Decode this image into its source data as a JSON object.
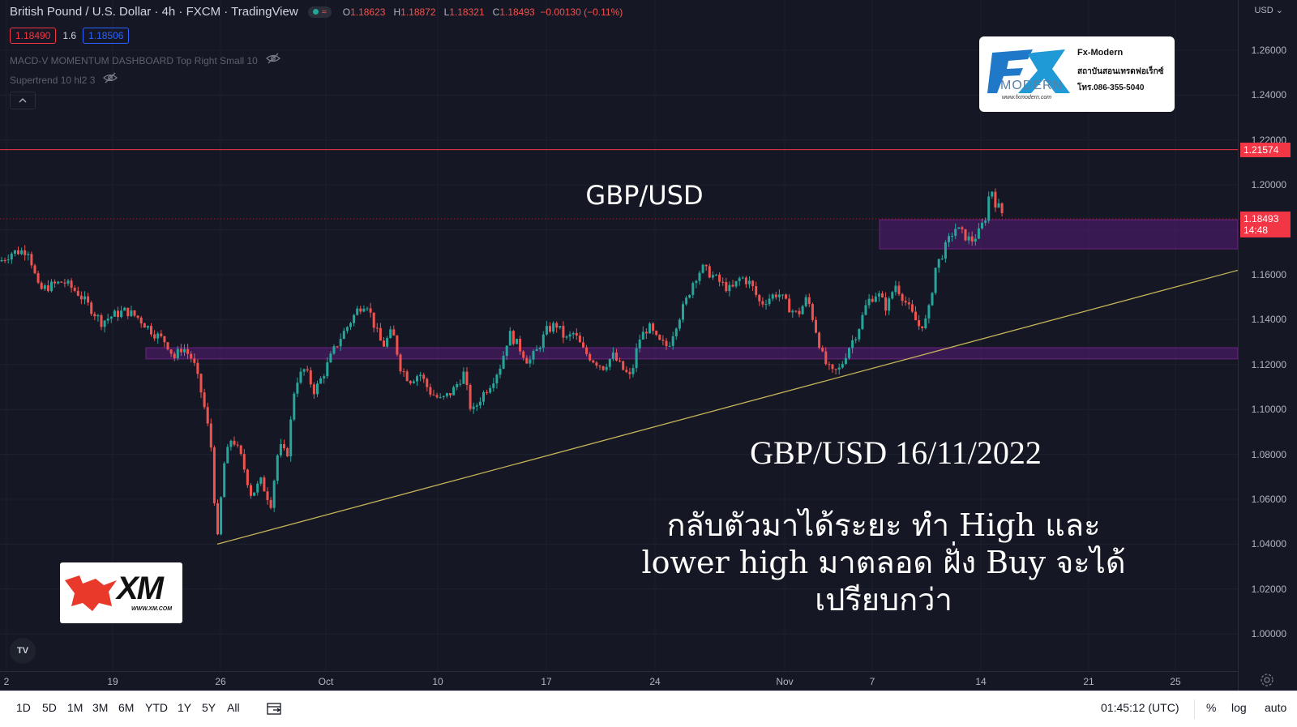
{
  "header": {
    "symbol_title": "British Pound / U.S. Dollar · 4h · FXCM · TradingView",
    "ohlc": {
      "o_label": "O",
      "o": "1.18623",
      "h_label": "H",
      "h": "1.18872",
      "l_label": "L",
      "l": "1.18321",
      "c_label": "C",
      "c": "1.18493",
      "change": "−0.00130 (−0.11%)"
    },
    "sell_price": "1.18490",
    "spread": "1.6",
    "buy_price": "1.18506",
    "indicators": [
      "MACD-V MOMENTUM DASHBOARD Top Right Small 10",
      "Supertrend 10 hl2 3"
    ]
  },
  "currency": "USD",
  "price_scale": {
    "ticks": [
      "1.26000",
      "1.24000",
      "1.22000",
      "1.20000",
      "1.18000",
      "1.16000",
      "1.14000",
      "1.12000",
      "1.10000",
      "1.08000",
      "1.06000",
      "1.04000",
      "1.02000",
      "1.00000"
    ],
    "resistance_label": "1.21574",
    "current_price_label": "1.18493",
    "countdown": "14:48"
  },
  "time_axis": {
    "labels": [
      "2",
      "19",
      "26",
      "Oct",
      "10",
      "17",
      "24",
      "Nov",
      "7",
      "14",
      "21",
      "25"
    ]
  },
  "chart_data": {
    "type": "candlestick",
    "symbol": "GBP/USD",
    "interval": "4h",
    "ylim": [
      0.995,
      1.265
    ],
    "path_points": [
      [
        0,
        1.166
      ],
      [
        15,
        1.17
      ],
      [
        35,
        1.171
      ],
      [
        48,
        1.153
      ],
      [
        62,
        1.155
      ],
      [
        78,
        1.157
      ],
      [
        96,
        1.152
      ],
      [
        112,
        1.145
      ],
      [
        125,
        1.139
      ],
      [
        140,
        1.142
      ],
      [
        155,
        1.144
      ],
      [
        170,
        1.141
      ],
      [
        190,
        1.134
      ],
      [
        205,
        1.13
      ],
      [
        215,
        1.123
      ],
      [
        225,
        1.128
      ],
      [
        238,
        1.122
      ],
      [
        250,
        1.105
      ],
      [
        260,
        1.085
      ],
      [
        268,
        1.04
      ],
      [
        276,
        1.075
      ],
      [
        286,
        1.088
      ],
      [
        298,
        1.078
      ],
      [
        310,
        1.062
      ],
      [
        322,
        1.068
      ],
      [
        334,
        1.058
      ],
      [
        344,
        1.084
      ],
      [
        354,
        1.079
      ],
      [
        364,
        1.112
      ],
      [
        376,
        1.118
      ],
      [
        388,
        1.108
      ],
      [
        398,
        1.115
      ],
      [
        410,
        1.125
      ],
      [
        420,
        1.132
      ],
      [
        432,
        1.139
      ],
      [
        442,
        1.145
      ],
      [
        452,
        1.148
      ],
      [
        462,
        1.137
      ],
      [
        472,
        1.128
      ],
      [
        484,
        1.135
      ],
      [
        494,
        1.119
      ],
      [
        505,
        1.113
      ],
      [
        518,
        1.116
      ],
      [
        530,
        1.108
      ],
      [
        544,
        1.104
      ],
      [
        558,
        1.108
      ],
      [
        572,
        1.116
      ],
      [
        582,
        1.098
      ],
      [
        594,
        1.106
      ],
      [
        606,
        1.112
      ],
      [
        618,
        1.12
      ],
      [
        628,
        1.134
      ],
      [
        640,
        1.128
      ],
      [
        652,
        1.121
      ],
      [
        662,
        1.126
      ],
      [
        674,
        1.135
      ],
      [
        686,
        1.138
      ],
      [
        698,
        1.131
      ],
      [
        708,
        1.134
      ],
      [
        720,
        1.126
      ],
      [
        732,
        1.122
      ],
      [
        744,
        1.119
      ],
      [
        756,
        1.124
      ],
      [
        768,
        1.118
      ],
      [
        778,
        1.114
      ],
      [
        788,
        1.131
      ],
      [
        800,
        1.137
      ],
      [
        812,
        1.13
      ],
      [
        824,
        1.128
      ],
      [
        834,
        1.138
      ],
      [
        846,
        1.148
      ],
      [
        856,
        1.158
      ],
      [
        866,
        1.163
      ],
      [
        878,
        1.16
      ],
      [
        890,
        1.156
      ],
      [
        902,
        1.153
      ],
      [
        914,
        1.159
      ],
      [
        926,
        1.156
      ],
      [
        938,
        1.147
      ],
      [
        950,
        1.15
      ],
      [
        960,
        1.152
      ],
      [
        972,
        1.146
      ],
      [
        984,
        1.142
      ],
      [
        996,
        1.15
      ],
      [
        1006,
        1.136
      ],
      [
        1016,
        1.122
      ],
      [
        1026,
        1.116
      ],
      [
        1036,
        1.118
      ],
      [
        1046,
        1.127
      ],
      [
        1058,
        1.135
      ],
      [
        1070,
        1.148
      ],
      [
        1082,
        1.152
      ],
      [
        1094,
        1.145
      ],
      [
        1104,
        1.156
      ],
      [
        1114,
        1.15
      ],
      [
        1124,
        1.143
      ],
      [
        1134,
        1.137
      ],
      [
        1144,
        1.14
      ],
      [
        1154,
        1.163
      ],
      [
        1166,
        1.172
      ],
      [
        1178,
        1.181
      ],
      [
        1188,
        1.178
      ],
      [
        1198,
        1.175
      ],
      [
        1208,
        1.179
      ],
      [
        1216,
        1.186
      ],
      [
        1222,
        1.2
      ],
      [
        1228,
        1.192
      ],
      [
        1234,
        1.189
      ],
      [
        1240,
        1.185
      ]
    ]
  },
  "annotations": {
    "resistance_price": 1.21574,
    "trendline": {
      "start_price": 1.04,
      "end_price": 1.162
    },
    "zones": [
      {
        "low": 1.1225,
        "high": 1.1275
      },
      {
        "low": 1.1715,
        "high": 1.1845
      }
    ],
    "chart_label": "GBP/USD",
    "date_text": "GBP/USD 16/11/2022",
    "comment_lines": [
      "กลับตัวมาได้ระยะ ทำ High และ",
      "lower high มาตลอด ฝั่ง Buy จะได้",
      "เปรียบกว่า"
    ]
  },
  "logos": {
    "fxmodern": {
      "lines": [
        "Fx-Modern",
        "สถาบันสอนเทรดฟอเร็กซ์",
        "โทร.086-355-5040"
      ],
      "url": "www.fxmodern.com",
      "mark": "FX",
      "word": "MODERN"
    },
    "xm": {
      "mark": "XM",
      "url": "WWW.XM.COM"
    },
    "tv_mark": "TV"
  },
  "toolbar": {
    "ranges": [
      "1D",
      "5D",
      "1M",
      "3M",
      "6M",
      "YTD",
      "1Y",
      "5Y",
      "All"
    ],
    "time": "01:45:12 (UTC)",
    "percent": "%",
    "log": "log",
    "auto": "auto"
  },
  "colors": {
    "up": "#26a69a",
    "down": "#ef5350",
    "background": "#151824",
    "zone": "#7b1fa2",
    "trendline": "#c5b358",
    "resistance": "#f23645"
  }
}
